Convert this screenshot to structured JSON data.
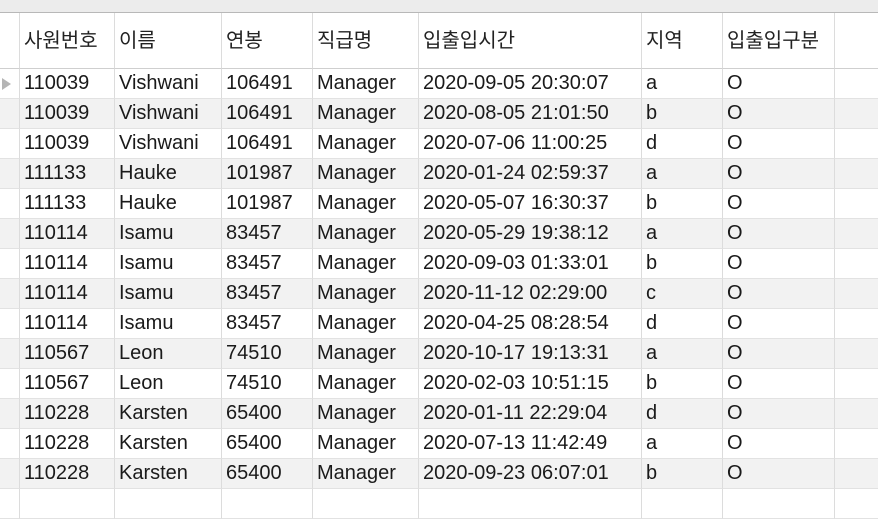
{
  "columns": [
    "사원번호",
    "이름",
    "연봉",
    "직급명",
    "입출입시간",
    "지역",
    "입출입구분"
  ],
  "rows": [
    [
      "110039",
      "Vishwani",
      "106491",
      "Manager",
      "2020-09-05 20:30:07",
      "a",
      "O"
    ],
    [
      "110039",
      "Vishwani",
      "106491",
      "Manager",
      "2020-08-05 21:01:50",
      "b",
      "O"
    ],
    [
      "110039",
      "Vishwani",
      "106491",
      "Manager",
      "2020-07-06 11:00:25",
      "d",
      "O"
    ],
    [
      "111133",
      "Hauke",
      "101987",
      "Manager",
      "2020-01-24 02:59:37",
      "a",
      "O"
    ],
    [
      "111133",
      "Hauke",
      "101987",
      "Manager",
      "2020-05-07 16:30:37",
      "b",
      "O"
    ],
    [
      "110114",
      "Isamu",
      "83457",
      "Manager",
      "2020-05-29 19:38:12",
      "a",
      "O"
    ],
    [
      "110114",
      "Isamu",
      "83457",
      "Manager",
      "2020-09-03 01:33:01",
      "b",
      "O"
    ],
    [
      "110114",
      "Isamu",
      "83457",
      "Manager",
      "2020-11-12 02:29:00",
      "c",
      "O"
    ],
    [
      "110114",
      "Isamu",
      "83457",
      "Manager",
      "2020-04-25 08:28:54",
      "d",
      "O"
    ],
    [
      "110567",
      "Leon",
      "74510",
      "Manager",
      "2020-10-17 19:13:31",
      "a",
      "O"
    ],
    [
      "110567",
      "Leon",
      "74510",
      "Manager",
      "2020-02-03 10:51:15",
      "b",
      "O"
    ],
    [
      "110228",
      "Karsten",
      "65400",
      "Manager",
      "2020-01-11 22:29:04",
      "d",
      "O"
    ],
    [
      "110228",
      "Karsten",
      "65400",
      "Manager",
      "2020-07-13 11:42:49",
      "a",
      "O"
    ],
    [
      "110228",
      "Karsten",
      "65400",
      "Manager",
      "2020-09-23 06:07:01",
      "b",
      "O"
    ]
  ],
  "selected_row_indicator": "triangle-right-icon",
  "colors": {
    "alt_row": "#f2f2f2",
    "grid_line": "#dcdcdc",
    "indicator": "#b5b5b5"
  }
}
